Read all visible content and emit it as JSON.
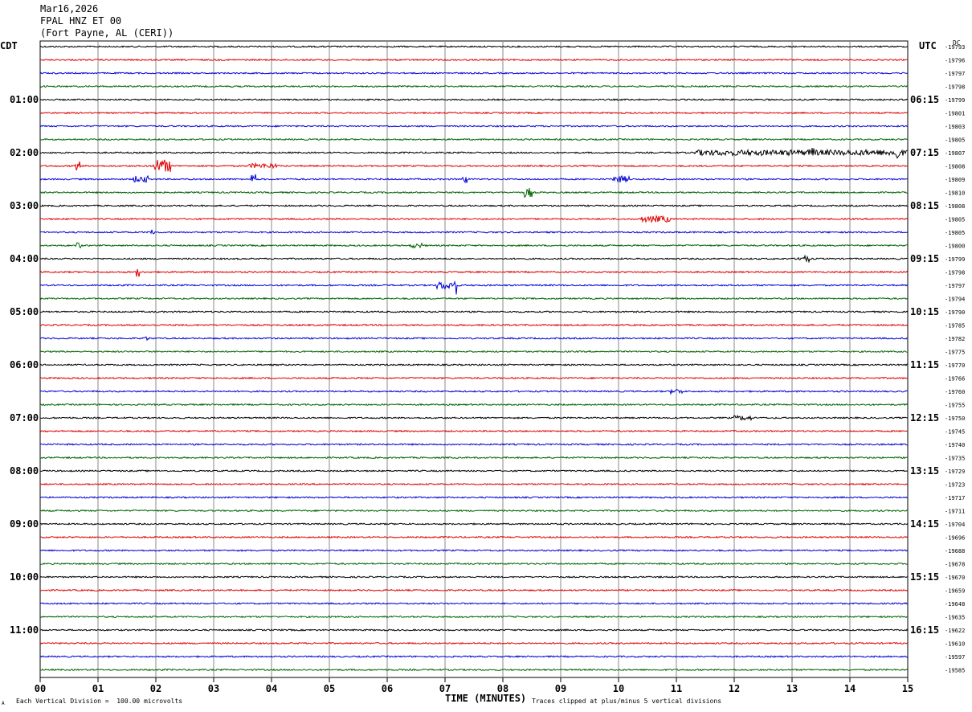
{
  "header": {
    "date": "Mar16,2026",
    "station": "FPAL HNZ ET 00",
    "location": "(Fort Payne, AL (CERI))"
  },
  "left_tz": "CDT",
  "right_tz": "UTC",
  "dc_label": "DC",
  "footer": {
    "scale_note": "Each Vertical Division =  100.00 microvolts",
    "clip_note": "Traces clipped at plus/minus 5 vertical divisions",
    "corner_mark": "A"
  },
  "trace_colors": [
    "#000000",
    "#e00000",
    "#0000d8",
    "#006400"
  ],
  "chart_data": {
    "type": "line",
    "xlabel": "TIME (MINUTES)",
    "ylabel": "",
    "x_ticks": [
      "00",
      "01",
      "02",
      "03",
      "04",
      "05",
      "06",
      "07",
      "08",
      "09",
      "10",
      "11",
      "12",
      "13",
      "14",
      "15"
    ],
    "xlim": [
      0,
      15
    ],
    "left_time_labels": [
      "01:00",
      "02:00",
      "03:00",
      "04:00",
      "05:00",
      "06:00",
      "07:00",
      "08:00",
      "09:00",
      "10:00",
      "11:00"
    ],
    "right_time_labels": [
      "06:15",
      "07:15",
      "08:15",
      "09:15",
      "10:15",
      "11:15",
      "12:15",
      "13:15",
      "14:15",
      "15:15",
      "16:15"
    ],
    "time_label_every_n_traces": 4,
    "time_label_start_trace": 4,
    "dc_offsets": [
      -19793,
      -19796,
      -19797,
      -19798,
      -19799,
      -19801,
      -19803,
      -19805,
      -19807,
      -19808,
      -19809,
      -19810,
      -19808,
      -19805,
      -19805,
      -19800,
      -19799,
      -19798,
      -19797,
      -19794,
      -19790,
      -19785,
      -19782,
      -19775,
      -19770,
      -19766,
      -19760,
      -19755,
      -19750,
      -19745,
      -19740,
      -19735,
      -19729,
      -19723,
      -19717,
      -19711,
      -19704,
      -19696,
      -19688,
      -19678,
      -19670,
      -19659,
      -19648,
      -19635,
      -19622,
      -19610,
      -19597,
      -19585
    ],
    "events": [
      {
        "trace": 8,
        "start_min": 11.3,
        "end_min": 15.0,
        "amp": 3.5
      },
      {
        "trace": 8,
        "start_min": 14.75,
        "end_min": 14.85,
        "amp": 10
      },
      {
        "trace": 8,
        "start_min": 13.3,
        "end_min": 13.4,
        "amp": 7
      },
      {
        "trace": 9,
        "start_min": 0.6,
        "end_min": 0.7,
        "amp": 6
      },
      {
        "trace": 9,
        "start_min": 1.95,
        "end_min": 2.25,
        "amp": 8
      },
      {
        "trace": 9,
        "start_min": 3.6,
        "end_min": 4.1,
        "amp": 3
      },
      {
        "trace": 10,
        "start_min": 1.6,
        "end_min": 1.9,
        "amp": 4
      },
      {
        "trace": 10,
        "start_min": 3.65,
        "end_min": 3.75,
        "amp": 7
      },
      {
        "trace": 10,
        "start_min": 7.3,
        "end_min": 7.4,
        "amp": 5
      },
      {
        "trace": 10,
        "start_min": 9.9,
        "end_min": 10.2,
        "amp": 4
      },
      {
        "trace": 11,
        "start_min": 8.35,
        "end_min": 8.5,
        "amp": 6
      },
      {
        "trace": 13,
        "start_min": 10.4,
        "end_min": 10.9,
        "amp": 4
      },
      {
        "trace": 14,
        "start_min": 1.9,
        "end_min": 1.98,
        "amp": 5
      },
      {
        "trace": 15,
        "start_min": 0.6,
        "end_min": 0.7,
        "amp": 4
      },
      {
        "trace": 15,
        "start_min": 6.4,
        "end_min": 6.6,
        "amp": 3
      },
      {
        "trace": 16,
        "start_min": 13.1,
        "end_min": 13.3,
        "amp": 4
      },
      {
        "trace": 17,
        "start_min": 1.65,
        "end_min": 1.72,
        "amp": 6
      },
      {
        "trace": 18,
        "start_min": 6.85,
        "end_min": 7.2,
        "amp": 5
      },
      {
        "trace": 18,
        "start_min": 7.15,
        "end_min": 7.2,
        "amp": 12
      },
      {
        "trace": 22,
        "start_min": 1.8,
        "end_min": 1.88,
        "amp": 3
      },
      {
        "trace": 26,
        "start_min": 10.9,
        "end_min": 11.1,
        "amp": 3
      },
      {
        "trace": 28,
        "start_min": 12.0,
        "end_min": 12.3,
        "amp": 3
      }
    ]
  }
}
